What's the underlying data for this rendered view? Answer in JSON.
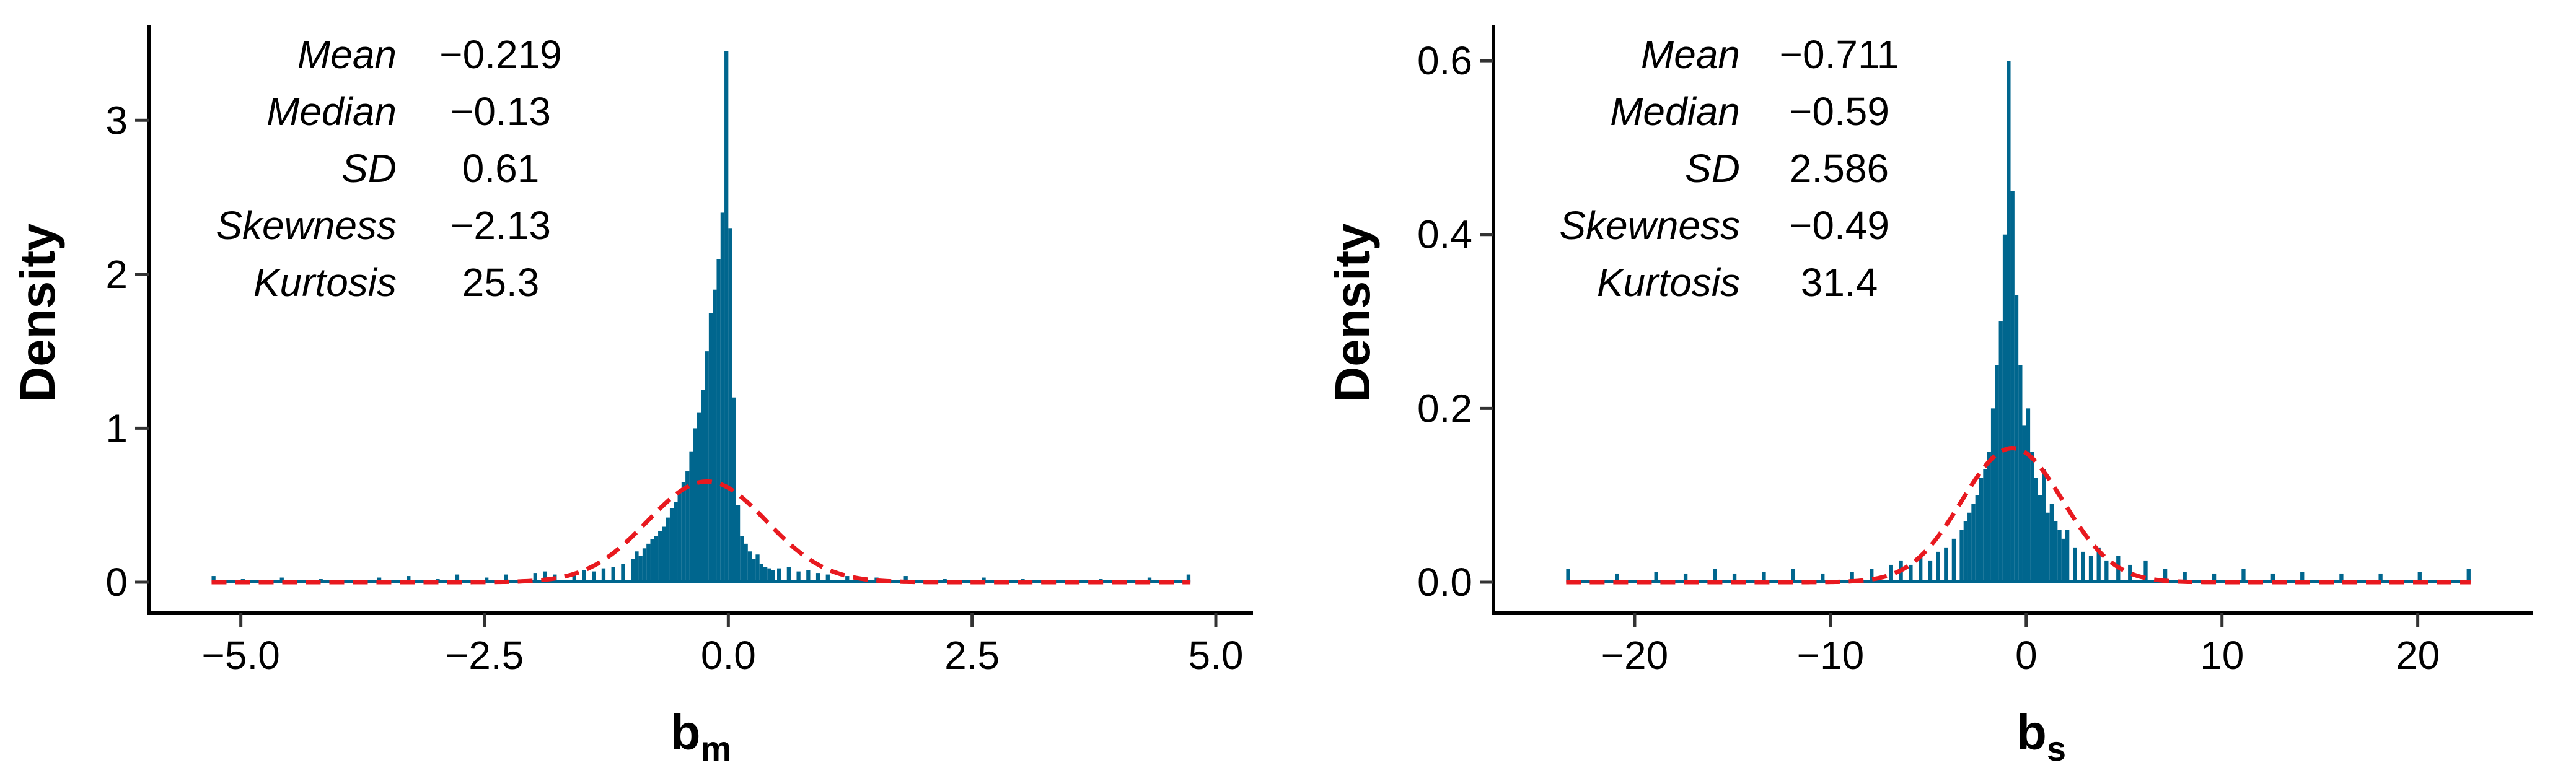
{
  "chart_data": [
    {
      "type": "bar",
      "panel": "left",
      "xlabel": "b",
      "xlabel_sub": "m",
      "ylabel": "Density",
      "xlim": [
        -5.5,
        5.0
      ],
      "ylim": [
        0,
        3.5
      ],
      "xticks": [
        -5.0,
        -2.5,
        0.0,
        2.5,
        5.0
      ],
      "xtick_labels": [
        "−5.0",
        "−2.5",
        "0.0",
        "2.5",
        "5.0"
      ],
      "yticks": [
        0,
        1,
        2,
        3
      ],
      "ytick_labels": [
        "0",
        "1",
        "2",
        "3"
      ],
      "grid": false,
      "bar_color": "#00668e",
      "curve_color": "#e8191f",
      "curve_style": "dashed",
      "normal_curve": {
        "mean": -0.219,
        "sd": 0.61
      },
      "stats": [
        {
          "name": "Mean",
          "value": "−0.219"
        },
        {
          "name": "Median",
          "value": "−0.13"
        },
        {
          "name": "SD",
          "value": "0.61"
        },
        {
          "name": "Skewness",
          "value": "−2.13"
        },
        {
          "name": "Kurtosis",
          "value": "25.3"
        }
      ],
      "histogram": {
        "bin_width": 0.04,
        "bins": [
          [
            -5.3,
            0.04
          ],
          [
            -5.0,
            0.02
          ],
          [
            -4.6,
            0.03
          ],
          [
            -4.2,
            0.02
          ],
          [
            -3.6,
            0.03
          ],
          [
            -3.3,
            0.04
          ],
          [
            -3.0,
            0.02
          ],
          [
            -2.8,
            0.05
          ],
          [
            -2.5,
            0.03
          ],
          [
            -2.3,
            0.05
          ],
          [
            -2.0,
            0.06
          ],
          [
            -1.9,
            0.07
          ],
          [
            -1.8,
            0.05
          ],
          [
            -1.6,
            0.06
          ],
          [
            -1.5,
            0.08
          ],
          [
            -1.4,
            0.07
          ],
          [
            -1.3,
            0.09
          ],
          [
            -1.2,
            0.1
          ],
          [
            -1.1,
            0.12
          ],
          [
            -1.0,
            0.15
          ],
          [
            -0.96,
            0.2
          ],
          [
            -0.92,
            0.17
          ],
          [
            -0.88,
            0.22
          ],
          [
            -0.84,
            0.25
          ],
          [
            -0.8,
            0.28
          ],
          [
            -0.76,
            0.3
          ],
          [
            -0.72,
            0.33
          ],
          [
            -0.68,
            0.36
          ],
          [
            -0.64,
            0.42
          ],
          [
            -0.6,
            0.48
          ],
          [
            -0.56,
            0.52
          ],
          [
            -0.52,
            0.58
          ],
          [
            -0.48,
            0.65
          ],
          [
            -0.44,
            0.72
          ],
          [
            -0.4,
            0.85
          ],
          [
            -0.36,
            1.0
          ],
          [
            -0.32,
            1.1
          ],
          [
            -0.28,
            1.25
          ],
          [
            -0.24,
            1.5
          ],
          [
            -0.2,
            1.75
          ],
          [
            -0.16,
            1.9
          ],
          [
            -0.12,
            2.1
          ],
          [
            -0.08,
            2.4
          ],
          [
            -0.04,
            3.45
          ],
          [
            0.0,
            2.3
          ],
          [
            0.04,
            1.2
          ],
          [
            0.08,
            0.5
          ],
          [
            0.12,
            0.3
          ],
          [
            0.16,
            0.25
          ],
          [
            0.2,
            0.2
          ],
          [
            0.24,
            0.15
          ],
          [
            0.28,
            0.18
          ],
          [
            0.32,
            0.12
          ],
          [
            0.36,
            0.1
          ],
          [
            0.4,
            0.09
          ],
          [
            0.44,
            0.08
          ],
          [
            0.5,
            0.09
          ],
          [
            0.6,
            0.1
          ],
          [
            0.7,
            0.07
          ],
          [
            0.8,
            0.08
          ],
          [
            0.9,
            0.06
          ],
          [
            1.0,
            0.05
          ],
          [
            1.2,
            0.04
          ],
          [
            1.5,
            0.03
          ],
          [
            1.8,
            0.04
          ],
          [
            2.2,
            0.02
          ],
          [
            2.6,
            0.03
          ],
          [
            3.0,
            0.02
          ],
          [
            3.8,
            0.02
          ],
          [
            4.3,
            0.03
          ],
          [
            4.7,
            0.05
          ]
        ]
      }
    },
    {
      "type": "bar",
      "panel": "right",
      "xlabel": "b",
      "xlabel_sub": "s",
      "ylabel": "Density",
      "xlim": [
        -25,
        24
      ],
      "ylim": [
        0,
        0.62
      ],
      "xticks": [
        -20,
        -10,
        0,
        10,
        20
      ],
      "xtick_labels": [
        "−20",
        "−10",
        "0",
        "10",
        "20"
      ],
      "yticks": [
        0.0,
        0.2,
        0.4,
        0.6
      ],
      "ytick_labels": [
        "0.0",
        "0.2",
        "0.4",
        "0.6"
      ],
      "grid": false,
      "bar_color": "#00668e",
      "curve_color": "#e8191f",
      "curve_style": "dashed",
      "normal_curve": {
        "mean": -0.711,
        "sd": 2.586
      },
      "stats": [
        {
          "name": "Mean",
          "value": "−0.711"
        },
        {
          "name": "Median",
          "value": "−0.59"
        },
        {
          "name": "SD",
          "value": "2.586"
        },
        {
          "name": "Skewness",
          "value": "−0.49"
        },
        {
          "name": "Kurtosis",
          "value": "31.4"
        }
      ],
      "histogram": {
        "bin_width": 0.2,
        "bins": [
          [
            -23.5,
            0.015
          ],
          [
            -21.0,
            0.01
          ],
          [
            -19.0,
            0.012
          ],
          [
            -17.5,
            0.01
          ],
          [
            -16.0,
            0.015
          ],
          [
            -15.0,
            0.01
          ],
          [
            -13.5,
            0.012
          ],
          [
            -12.0,
            0.015
          ],
          [
            -10.5,
            0.01
          ],
          [
            -9.0,
            0.012
          ],
          [
            -8.0,
            0.015
          ],
          [
            -7.0,
            0.02
          ],
          [
            -6.5,
            0.025
          ],
          [
            -6.0,
            0.02
          ],
          [
            -5.5,
            0.03
          ],
          [
            -5.0,
            0.025
          ],
          [
            -4.6,
            0.035
          ],
          [
            -4.2,
            0.04
          ],
          [
            -3.8,
            0.05
          ],
          [
            -3.4,
            0.06
          ],
          [
            -3.2,
            0.07
          ],
          [
            -3.0,
            0.08
          ],
          [
            -2.8,
            0.09
          ],
          [
            -2.6,
            0.1
          ],
          [
            -2.4,
            0.12
          ],
          [
            -2.2,
            0.13
          ],
          [
            -2.0,
            0.15
          ],
          [
            -1.8,
            0.2
          ],
          [
            -1.6,
            0.25
          ],
          [
            -1.4,
            0.3
          ],
          [
            -1.2,
            0.4
          ],
          [
            -1.0,
            0.6
          ],
          [
            -0.8,
            0.45
          ],
          [
            -0.6,
            0.33
          ],
          [
            -0.4,
            0.25
          ],
          [
            -0.2,
            0.18
          ],
          [
            0.0,
            0.2
          ],
          [
            0.2,
            0.15
          ],
          [
            0.4,
            0.12
          ],
          [
            0.6,
            0.1
          ],
          [
            0.8,
            0.13
          ],
          [
            1.0,
            0.08
          ],
          [
            1.2,
            0.09
          ],
          [
            1.4,
            0.07
          ],
          [
            1.6,
            0.06
          ],
          [
            1.8,
            0.05
          ],
          [
            2.0,
            0.06
          ],
          [
            2.4,
            0.04
          ],
          [
            2.8,
            0.035
          ],
          [
            3.2,
            0.03
          ],
          [
            3.6,
            0.04
          ],
          [
            4.0,
            0.025
          ],
          [
            4.6,
            0.03
          ],
          [
            5.2,
            0.02
          ],
          [
            6.0,
            0.025
          ],
          [
            7.0,
            0.015
          ],
          [
            8.0,
            0.012
          ],
          [
            9.5,
            0.01
          ],
          [
            11.0,
            0.015
          ],
          [
            12.5,
            0.01
          ],
          [
            14.0,
            0.012
          ],
          [
            16.0,
            0.01
          ],
          [
            18.0,
            0.01
          ],
          [
            20.0,
            0.012
          ],
          [
            22.5,
            0.015
          ]
        ]
      }
    }
  ]
}
